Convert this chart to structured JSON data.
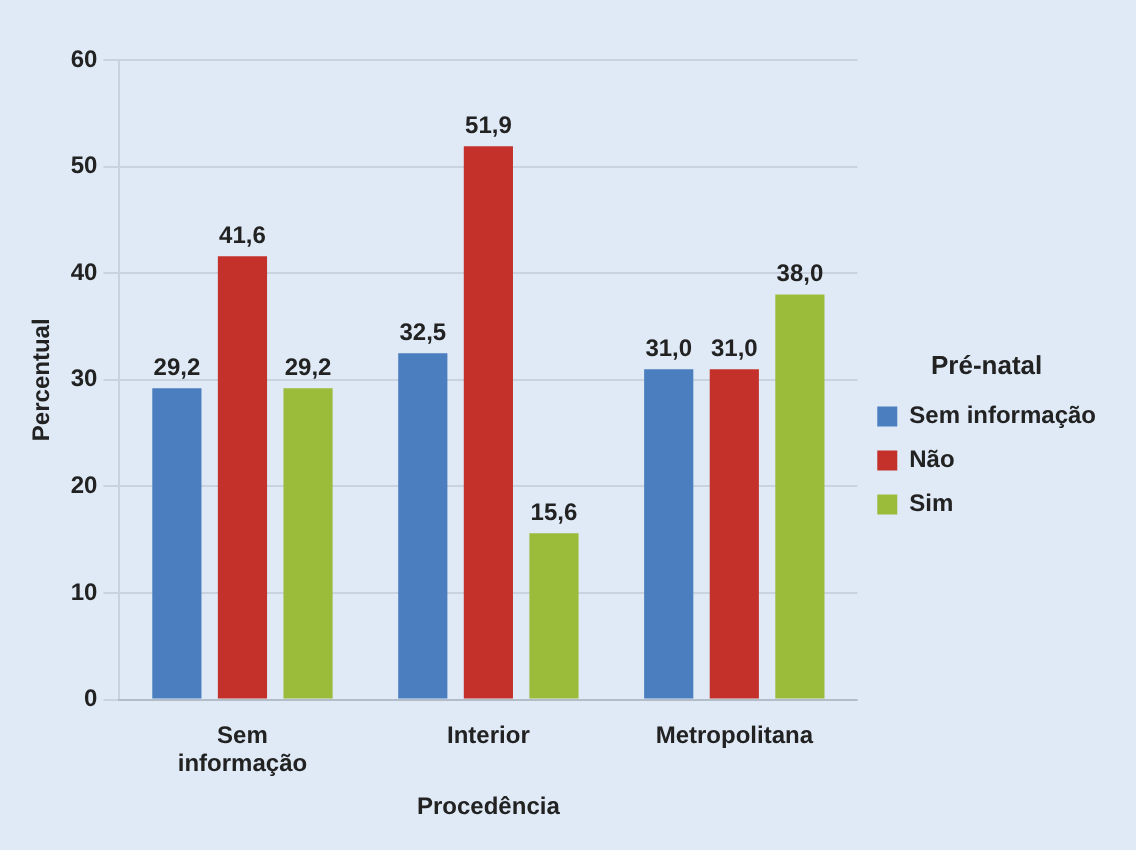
{
  "chart_data": {
    "type": "bar",
    "xlabel": "Procedência",
    "ylabel": "Percentual",
    "legend_title": "Pré-natal",
    "legend": "right",
    "grid": "y",
    "categories": [
      "Sem informação",
      "Interior",
      "Metropolitana"
    ],
    "series": [
      {
        "name": "Sem informação",
        "color": "#4a7ebf",
        "values": [
          29.2,
          32.5,
          31.0
        ],
        "value_labels": [
          "29,2",
          "32,5",
          "31,0"
        ]
      },
      {
        "name": "Não",
        "color": "#c4312b",
        "values": [
          41.6,
          51.9,
          31.0
        ],
        "value_labels": [
          "41,6",
          "51,9",
          "31,0"
        ]
      },
      {
        "name": "Sim",
        "color": "#9bbb3b",
        "values": [
          29.2,
          15.6,
          38.0
        ],
        "value_labels": [
          "29,2",
          "15,6",
          "38,0"
        ]
      }
    ],
    "ylim": [
      0,
      60
    ],
    "yticks": [
      0,
      10,
      20,
      30,
      40,
      50,
      60
    ]
  }
}
